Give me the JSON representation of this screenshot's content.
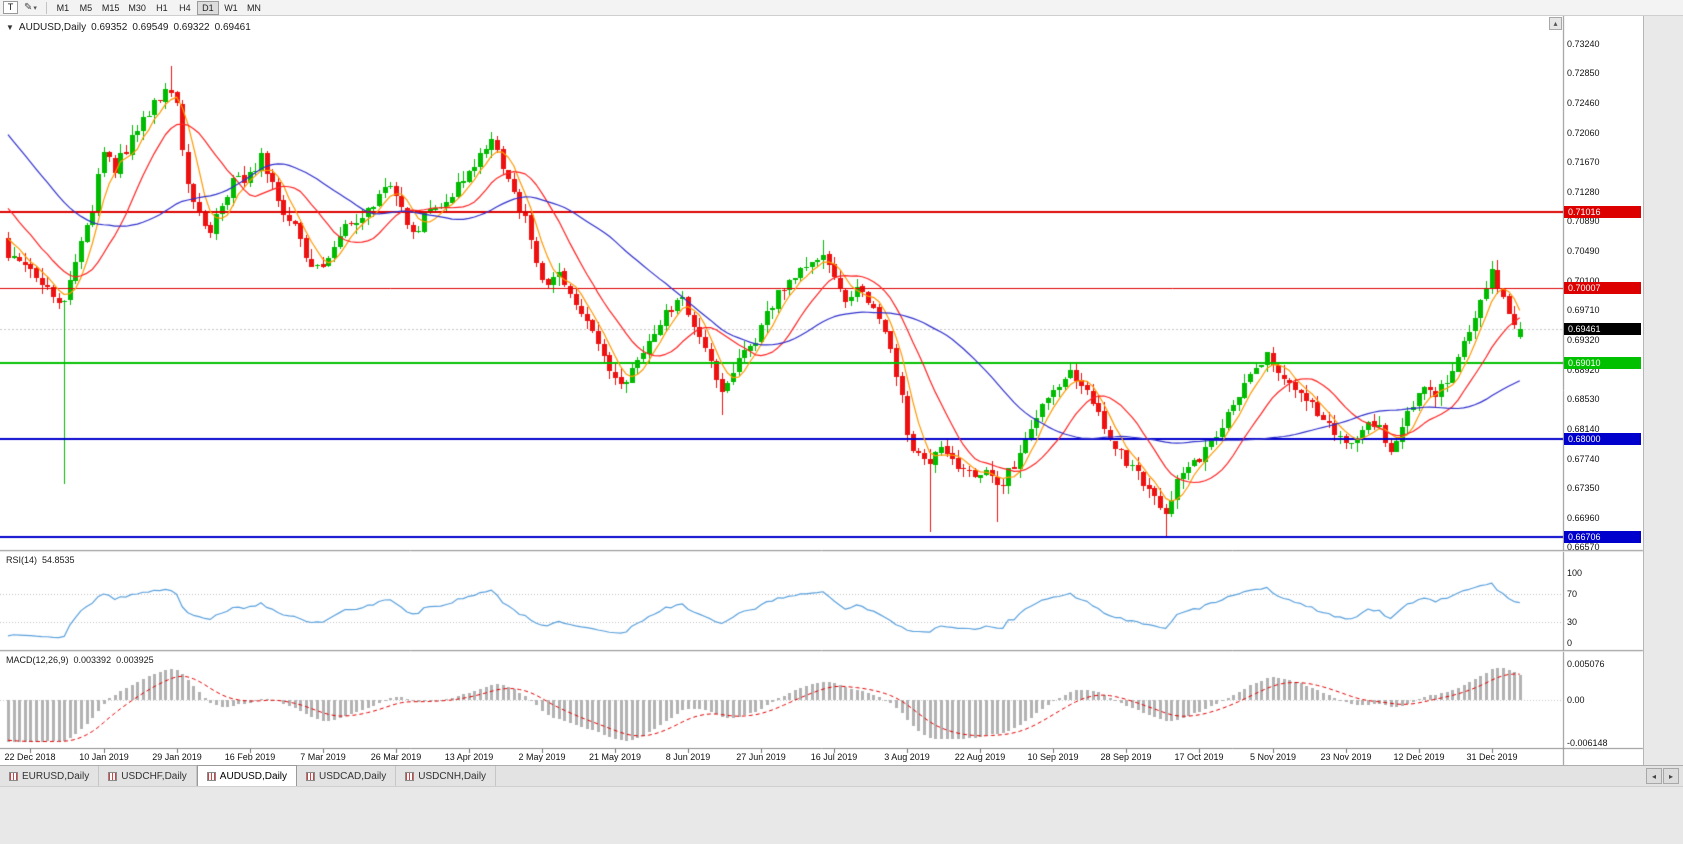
{
  "colors": {
    "bull": "#00bb00",
    "bear": "#ee1111",
    "ma_fast": "#ff9800",
    "ma_mid": "#ff2222",
    "ma_slow": "#3030cc",
    "rsi_line": "#5aa0dc",
    "macd_hist": "#b2b2b2",
    "macd_signal": "#e00000",
    "current_line": "#c8c8c8",
    "axis_text": "#111111"
  },
  "chrome": {
    "scroll_up_icon": "▴",
    "tab_prev_icon": "◂",
    "tab_next_icon": "▸"
  },
  "toolbar": {
    "handle_label": "T",
    "tools_icon_glyph": "✎",
    "tools_caret": "▾",
    "timeframes": [
      "M1",
      "M5",
      "M15",
      "M30",
      "H1",
      "H4",
      "D1",
      "W1",
      "MN"
    ],
    "active_timeframe": "D1"
  },
  "main_chart": {
    "legend": {
      "collapse_icon": "▼",
      "symbol": "AUDUSD,Daily",
      "open": "0.69352",
      "high": "0.69549",
      "low": "0.69322",
      "close": "0.69461"
    },
    "price_axis": {
      "ticks": [
        "0.73240",
        "0.72850",
        "0.72460",
        "0.72060",
        "0.71670",
        "0.71280",
        "0.70890",
        "0.70490",
        "0.70100",
        "0.69710",
        "0.69320",
        "0.68920",
        "0.68530",
        "0.68140",
        "0.67740",
        "0.67350",
        "0.66960",
        "0.66570"
      ]
    },
    "hlines": [
      {
        "label": "0.71016",
        "value": 0.71016,
        "color": "#dd0000",
        "width": 2
      },
      {
        "label": "0.70007",
        "value": 0.70007,
        "color": "#dd0000",
        "width": 1
      },
      {
        "label": "0.69010",
        "value": 0.6901,
        "color": "#00c000",
        "width": 2
      },
      {
        "label": "0.68000",
        "value": 0.68,
        "color": "#0000cc",
        "width": 2
      },
      {
        "label": "0.66706",
        "value": 0.66706,
        "color": "#0000cc",
        "width": 2
      }
    ],
    "current_price": {
      "label": "0.69461",
      "value": 0.69461,
      "badge_bg": "#000000"
    }
  },
  "rsi_panel": {
    "label": "RSI(14)",
    "value": "54.8535",
    "levels": [
      "100",
      "70",
      "30",
      "0"
    ]
  },
  "macd_panel": {
    "label": "MACD(12,26,9)",
    "value_main": "0.003392",
    "value_signal": "0.003925",
    "scale_labels": [
      "0.005076",
      "0.00",
      "-0.006148"
    ]
  },
  "date_axis": {
    "labels": [
      "22 Dec 2018",
      "10 Jan 2019",
      "29 Jan 2019",
      "16 Feb 2019",
      "7 Mar 2019",
      "26 Mar 2019",
      "13 Apr 2019",
      "2 May 2019",
      "21 May 2019",
      "8 Jun 2019",
      "27 Jun 2019",
      "16 Jul 2019",
      "3 Aug 2019",
      "22 Aug 2019",
      "10 Sep 2019",
      "28 Sep 2019",
      "17 Oct 2019",
      "5 Nov 2019",
      "23 Nov 2019",
      "12 Dec 2019",
      "31 Dec 2019"
    ]
  },
  "tabs": {
    "items": [
      "EURUSD,Daily",
      "USDCHF,Daily",
      "AUDUSD,Daily",
      "USDCAD,Daily",
      "USDCNH,Daily"
    ],
    "active_index": 2
  },
  "chart_data": {
    "type": "candlestick",
    "symbol": "AUDUSD",
    "timeframe": "Daily",
    "visible_bars": 270,
    "anchors": [
      [
        0,
        0.7045
      ],
      [
        4,
        0.703
      ],
      [
        7,
        0.7
      ],
      [
        9,
        0.6985
      ],
      [
        10,
        0.699
      ],
      [
        11,
        0.701
      ],
      [
        13,
        0.706
      ],
      [
        15,
        0.711
      ],
      [
        17,
        0.7185
      ],
      [
        19,
        0.716
      ],
      [
        21,
        0.7185
      ],
      [
        23,
        0.721
      ],
      [
        26,
        0.7245
      ],
      [
        28,
        0.7265
      ],
      [
        30,
        0.724
      ],
      [
        32,
        0.714
      ],
      [
        34,
        0.7095
      ],
      [
        36,
        0.708
      ],
      [
        38,
        0.7115
      ],
      [
        40,
        0.714
      ],
      [
        43,
        0.715
      ],
      [
        45,
        0.7175
      ],
      [
        47,
        0.714
      ],
      [
        49,
        0.7095
      ],
      [
        51,
        0.708
      ],
      [
        53,
        0.704
      ],
      [
        56,
        0.7025
      ],
      [
        58,
        0.7055
      ],
      [
        60,
        0.708
      ],
      [
        63,
        0.7095
      ],
      [
        66,
        0.712
      ],
      [
        68,
        0.714
      ],
      [
        70,
        0.7105
      ],
      [
        72,
        0.707
      ],
      [
        74,
        0.7095
      ],
      [
        77,
        0.7115
      ],
      [
        80,
        0.7135
      ],
      [
        83,
        0.7165
      ],
      [
        86,
        0.7195
      ],
      [
        88,
        0.7165
      ],
      [
        90,
        0.7125
      ],
      [
        92,
        0.709
      ],
      [
        94,
        0.703
      ],
      [
        96,
        0.7005
      ],
      [
        98,
        0.7015
      ],
      [
        100,
        0.6995
      ],
      [
        102,
        0.6965
      ],
      [
        104,
        0.6945
      ],
      [
        106,
        0.6905
      ],
      [
        108,
        0.688
      ],
      [
        110,
        0.6875
      ],
      [
        112,
        0.6905
      ],
      [
        114,
        0.6935
      ],
      [
        116,
        0.6955
      ],
      [
        118,
        0.6975
      ],
      [
        120,
        0.6985
      ],
      [
        122,
        0.6955
      ],
      [
        124,
        0.6915
      ],
      [
        126,
        0.688
      ],
      [
        127,
        0.686
      ],
      [
        129,
        0.6885
      ],
      [
        131,
        0.6915
      ],
      [
        133,
        0.6935
      ],
      [
        135,
        0.6965
      ],
      [
        137,
        0.699
      ],
      [
        139,
        0.7005
      ],
      [
        141,
        0.702
      ],
      [
        143,
        0.703
      ],
      [
        145,
        0.704
      ],
      [
        147,
        0.7015
      ],
      [
        149,
        0.6985
      ],
      [
        151,
        0.7
      ],
      [
        153,
        0.6985
      ],
      [
        155,
        0.6955
      ],
      [
        157,
        0.6915
      ],
      [
        159,
        0.6855
      ],
      [
        160,
        0.68
      ],
      [
        162,
        0.6775
      ],
      [
        164,
        0.676
      ],
      [
        166,
        0.679
      ],
      [
        168,
        0.6775
      ],
      [
        170,
        0.676
      ],
      [
        172,
        0.6745
      ],
      [
        174,
        0.6765
      ],
      [
        176,
        0.6735
      ],
      [
        178,
        0.6755
      ],
      [
        180,
        0.678
      ],
      [
        182,
        0.6815
      ],
      [
        184,
        0.684
      ],
      [
        186,
        0.6865
      ],
      [
        189,
        0.6885
      ],
      [
        191,
        0.687
      ],
      [
        193,
        0.6845
      ],
      [
        195,
        0.6815
      ],
      [
        197,
        0.679
      ],
      [
        199,
        0.677
      ],
      [
        201,
        0.6755
      ],
      [
        203,
        0.6735
      ],
      [
        205,
        0.6715
      ],
      [
        206,
        0.67
      ],
      [
        208,
        0.674
      ],
      [
        210,
        0.6765
      ],
      [
        212,
        0.6775
      ],
      [
        214,
        0.6795
      ],
      [
        216,
        0.682
      ],
      [
        218,
        0.6845
      ],
      [
        220,
        0.687
      ],
      [
        222,
        0.689
      ],
      [
        224,
        0.6915
      ],
      [
        226,
        0.689
      ],
      [
        228,
        0.6875
      ],
      [
        230,
        0.686
      ],
      [
        232,
        0.6845
      ],
      [
        234,
        0.6825
      ],
      [
        236,
        0.6805
      ],
      [
        238,
        0.679
      ],
      [
        240,
        0.6805
      ],
      [
        242,
        0.683
      ],
      [
        244,
        0.6815
      ],
      [
        246,
        0.679
      ],
      [
        248,
        0.682
      ],
      [
        250,
        0.685
      ],
      [
        252,
        0.6868
      ],
      [
        254,
        0.6852
      ],
      [
        256,
        0.688
      ],
      [
        258,
        0.6905
      ],
      [
        260,
        0.6945
      ],
      [
        262,
        0.6985
      ],
      [
        264,
        0.702
      ],
      [
        265,
        0.7008
      ],
      [
        266,
        0.6988
      ],
      [
        267,
        0.696
      ],
      [
        268,
        0.6952
      ],
      [
        269,
        0.69461
      ]
    ],
    "wick_overrides": {
      "10": {
        "low": 0.6741
      },
      "29": {
        "high": 0.7295
      },
      "86": {
        "high": 0.7207
      },
      "110": {
        "low": 0.6864
      },
      "127": {
        "low": 0.6832
      },
      "145": {
        "high": 0.7064
      },
      "164": {
        "low": 0.6677
      },
      "176": {
        "low": 0.669
      },
      "206": {
        "low": 0.667
      },
      "264": {
        "high": 0.7036
      }
    },
    "last_candle": {
      "open": 0.69352,
      "high": 0.69549,
      "low": 0.69322,
      "close": 0.69461
    },
    "pre_history": {
      "bars": 40,
      "from": 0.742,
      "to": 0.706
    },
    "moving_averages": [
      {
        "type": "sma",
        "period": 5,
        "color": "#ff9800"
      },
      {
        "type": "sma",
        "period": 13,
        "color": "#ff2222"
      },
      {
        "type": "sma",
        "period": 34,
        "color": "#3030cc"
      }
    ],
    "indicators": {
      "rsi": {
        "period": 14,
        "last": 54.8535,
        "levels": [
          100,
          70,
          30,
          0
        ]
      },
      "macd": {
        "fast": 12,
        "slow": 26,
        "signal": 9,
        "last_main": 0.003392,
        "last_signal": 0.003925,
        "scale_max": 0.005076,
        "scale_min": -0.006148
      }
    },
    "horizontal_levels": [
      0.71016,
      0.70007,
      0.6901,
      0.68,
      0.66706
    ]
  }
}
